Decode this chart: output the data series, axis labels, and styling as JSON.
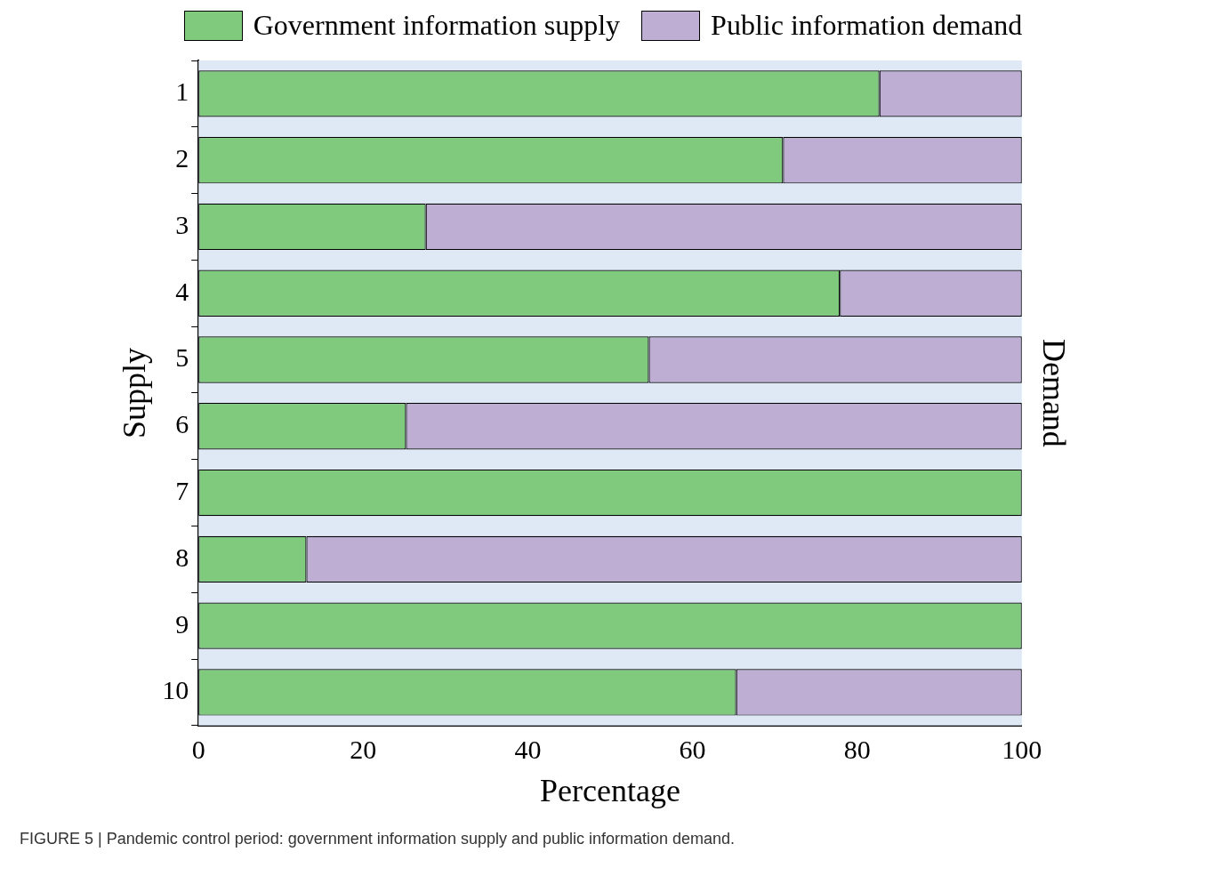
{
  "chart_data": {
    "type": "bar",
    "stacked": true,
    "orientation": "horizontal",
    "categories": [
      "1",
      "2",
      "3",
      "4",
      "5",
      "6",
      "7",
      "8",
      "9",
      "10"
    ],
    "series": [
      {
        "name": "Government information supply",
        "color": "#7fca7d",
        "values": [
          82.7,
          71,
          27.6,
          77.9,
          54.7,
          25.2,
          100,
          13.1,
          100,
          65.3
        ]
      },
      {
        "name": "Public information demand",
        "color": "#beaed4",
        "values": [
          17.3,
          29,
          72.4,
          22.1,
          45.3,
          74.8,
          0,
          86.9,
          0,
          34.7
        ]
      }
    ],
    "xlim": [
      0,
      100
    ],
    "xticks": [
      0,
      20,
      40,
      60,
      80,
      100
    ],
    "xlabel": "Percentage",
    "ylabel": "Supply",
    "y2label": "Demand",
    "legend": "top",
    "grid": false,
    "annotations": [
      "FIGURE 5 | Pandemic control period: government information supply and public information demand."
    ]
  }
}
